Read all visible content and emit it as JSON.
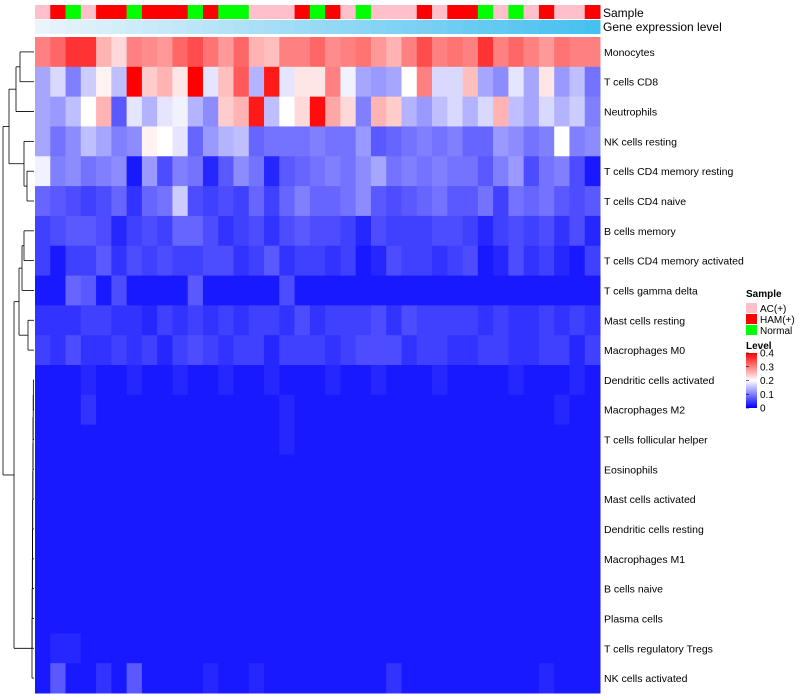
{
  "chart_data": {
    "type": "heatmap",
    "title": "",
    "value_range": [
      0,
      0.4
    ],
    "annotation_rows": [
      {
        "name": "Sample",
        "key": "sample"
      },
      {
        "name": "Gene expression level",
        "key": "gene"
      }
    ],
    "sample_groups": [
      "AC(+)",
      "HAM(+)",
      "Normal",
      "AC(+)",
      "HAM(+)",
      "HAM(+)",
      "Normal",
      "HAM(+)",
      "HAM(+)",
      "HAM(+)",
      "Normal",
      "HAM(+)",
      "Normal",
      "Normal",
      "AC(+)",
      "AC(+)",
      "AC(+)",
      "HAM(+)",
      "Normal",
      "HAM(+)",
      "AC(+)",
      "Normal",
      "AC(+)",
      "AC(+)",
      "AC(+)",
      "HAM(+)",
      "AC(+)",
      "HAM(+)",
      "HAM(+)",
      "Normal",
      "AC(+)",
      "Normal",
      "AC(+)",
      "HAM(+)",
      "AC(+)",
      "AC(+)",
      "HAM(+)"
    ],
    "gene_expression": [
      0.0,
      0.03,
      0.06,
      0.08,
      0.11,
      0.14,
      0.17,
      0.19,
      0.22,
      0.25,
      0.28,
      0.31,
      0.33,
      0.36,
      0.39,
      0.42,
      0.44,
      0.47,
      0.5,
      0.53,
      0.56,
      0.58,
      0.61,
      0.64,
      0.67,
      0.69,
      0.72,
      0.75,
      0.78,
      0.81,
      0.83,
      0.86,
      0.89,
      0.92,
      0.94,
      0.97,
      1.0
    ],
    "rows": [
      "Monocytes",
      "T cells CD8",
      "Neutrophils",
      "NK cells resting",
      "T cells CD4 memory resting",
      "T cells CD4 naive",
      "B cells memory",
      "T cells CD4 memory activated",
      "T cells gamma delta",
      "Mast cells resting",
      "Macrophages M0",
      "Dendritic cells activated",
      "Macrophages M2",
      "T cells follicular helper",
      "Eosinophils",
      "Mast cells activated",
      "Dendritic cells resting",
      "Macrophages M1",
      "B cells naive",
      "Plasma cells",
      "T cells regulatory  Tregs",
      "NK cells activated"
    ],
    "values": [
      [
        0.3,
        0.32,
        0.36,
        0.36,
        0.26,
        0.23,
        0.3,
        0.29,
        0.28,
        0.32,
        0.34,
        0.31,
        0.28,
        0.32,
        0.26,
        0.25,
        0.3,
        0.3,
        0.32,
        0.29,
        0.3,
        0.31,
        0.28,
        0.26,
        0.3,
        0.34,
        0.3,
        0.31,
        0.3,
        0.36,
        0.3,
        0.32,
        0.3,
        0.28,
        0.31,
        0.3,
        0.3
      ],
      [
        0.13,
        0.17,
        0.1,
        0.16,
        0.21,
        0.15,
        0.4,
        0.24,
        0.26,
        0.22,
        0.4,
        0.18,
        0.25,
        0.33,
        0.14,
        0.38,
        0.18,
        0.22,
        0.22,
        0.3,
        0.19,
        0.13,
        0.12,
        0.13,
        0.2,
        0.3,
        0.17,
        0.17,
        0.25,
        0.13,
        0.11,
        0.18,
        0.13,
        0.22,
        0.12,
        0.15,
        0.09
      ],
      [
        0.13,
        0.12,
        0.15,
        0.2,
        0.26,
        0.07,
        0.18,
        0.14,
        0.18,
        0.19,
        0.14,
        0.11,
        0.24,
        0.26,
        0.38,
        0.15,
        0.2,
        0.23,
        0.39,
        0.27,
        0.23,
        0.1,
        0.26,
        0.24,
        0.14,
        0.12,
        0.15,
        0.17,
        0.14,
        0.17,
        0.26,
        0.15,
        0.13,
        0.17,
        0.14,
        0.16,
        0.1
      ],
      [
        0.13,
        0.09,
        0.11,
        0.15,
        0.13,
        0.1,
        0.11,
        0.21,
        0.2,
        0.18,
        0.08,
        0.12,
        0.14,
        0.15,
        0.08,
        0.09,
        0.09,
        0.09,
        0.1,
        0.09,
        0.09,
        0.12,
        0.07,
        0.08,
        0.09,
        0.1,
        0.09,
        0.1,
        0.08,
        0.08,
        0.12,
        0.11,
        0.09,
        0.1,
        0.2,
        0.1,
        0.11
      ],
      [
        0.19,
        0.1,
        0.11,
        0.09,
        0.1,
        0.11,
        0.02,
        0.12,
        0.06,
        0.1,
        0.09,
        0.03,
        0.07,
        0.11,
        0.09,
        0.03,
        0.07,
        0.08,
        0.09,
        0.1,
        0.09,
        0.11,
        0.13,
        0.09,
        0.1,
        0.09,
        0.1,
        0.09,
        0.09,
        0.07,
        0.1,
        0.12,
        0.06,
        0.09,
        0.1,
        0.06,
        0.02
      ],
      [
        0.08,
        0.07,
        0.06,
        0.05,
        0.06,
        0.08,
        0.04,
        0.08,
        0.09,
        0.16,
        0.06,
        0.05,
        0.06,
        0.05,
        0.08,
        0.05,
        0.08,
        0.1,
        0.08,
        0.08,
        0.09,
        0.11,
        0.07,
        0.06,
        0.07,
        0.08,
        0.09,
        0.07,
        0.07,
        0.09,
        0.05,
        0.09,
        0.08,
        0.09,
        0.07,
        0.06,
        0.07
      ],
      [
        0.05,
        0.06,
        0.07,
        0.07,
        0.06,
        0.03,
        0.05,
        0.06,
        0.05,
        0.08,
        0.08,
        0.06,
        0.04,
        0.05,
        0.06,
        0.04,
        0.06,
        0.07,
        0.06,
        0.06,
        0.05,
        0.03,
        0.06,
        0.05,
        0.05,
        0.05,
        0.06,
        0.06,
        0.05,
        0.03,
        0.05,
        0.06,
        0.05,
        0.06,
        0.04,
        0.06,
        0.03
      ],
      [
        0.05,
        0.02,
        0.05,
        0.05,
        0.07,
        0.04,
        0.06,
        0.05,
        0.06,
        0.05,
        0.05,
        0.06,
        0.06,
        0.04,
        0.05,
        0.07,
        0.04,
        0.05,
        0.05,
        0.04,
        0.05,
        0.02,
        0.03,
        0.06,
        0.05,
        0.05,
        0.04,
        0.05,
        0.06,
        0.02,
        0.03,
        0.06,
        0.04,
        0.05,
        0.03,
        0.02,
        0.05
      ],
      [
        0.02,
        0.02,
        0.08,
        0.07,
        0.02,
        0.06,
        0.02,
        0.02,
        0.02,
        0.02,
        0.07,
        0.02,
        0.02,
        0.02,
        0.02,
        0.02,
        0.06,
        0.02,
        0.02,
        0.02,
        0.02,
        0.02,
        0.02,
        0.02,
        0.02,
        0.02,
        0.02,
        0.02,
        0.02,
        0.02,
        0.02,
        0.02,
        0.02,
        0.02,
        0.02,
        0.02,
        0.02
      ],
      [
        0.04,
        0.04,
        0.04,
        0.05,
        0.05,
        0.04,
        0.04,
        0.03,
        0.05,
        0.04,
        0.05,
        0.04,
        0.05,
        0.04,
        0.05,
        0.05,
        0.04,
        0.06,
        0.04,
        0.05,
        0.05,
        0.05,
        0.06,
        0.04,
        0.06,
        0.05,
        0.05,
        0.05,
        0.05,
        0.04,
        0.05,
        0.04,
        0.04,
        0.05,
        0.04,
        0.05,
        0.04
      ],
      [
        0.05,
        0.04,
        0.06,
        0.04,
        0.04,
        0.05,
        0.04,
        0.05,
        0.03,
        0.05,
        0.06,
        0.05,
        0.04,
        0.05,
        0.05,
        0.03,
        0.05,
        0.05,
        0.05,
        0.04,
        0.05,
        0.06,
        0.06,
        0.06,
        0.04,
        0.05,
        0.05,
        0.04,
        0.04,
        0.05,
        0.05,
        0.04,
        0.04,
        0.05,
        0.05,
        0.03,
        0.05
      ],
      [
        0.02,
        0.02,
        0.02,
        0.03,
        0.02,
        0.02,
        0.03,
        0.02,
        0.02,
        0.03,
        0.02,
        0.02,
        0.03,
        0.02,
        0.02,
        0.03,
        0.02,
        0.02,
        0.02,
        0.03,
        0.02,
        0.02,
        0.03,
        0.02,
        0.02,
        0.02,
        0.03,
        0.02,
        0.02,
        0.02,
        0.02,
        0.03,
        0.02,
        0.02,
        0.02,
        0.03,
        0.02
      ],
      [
        0.02,
        0.02,
        0.02,
        0.04,
        0.02,
        0.02,
        0.02,
        0.02,
        0.02,
        0.02,
        0.02,
        0.02,
        0.02,
        0.02,
        0.02,
        0.02,
        0.03,
        0.02,
        0.02,
        0.02,
        0.02,
        0.02,
        0.02,
        0.02,
        0.02,
        0.02,
        0.02,
        0.02,
        0.02,
        0.02,
        0.02,
        0.02,
        0.02,
        0.02,
        0.03,
        0.02,
        0.02
      ],
      [
        0.02,
        0.02,
        0.02,
        0.02,
        0.02,
        0.02,
        0.02,
        0.02,
        0.02,
        0.02,
        0.02,
        0.02,
        0.02,
        0.02,
        0.02,
        0.02,
        0.03,
        0.02,
        0.02,
        0.02,
        0.02,
        0.02,
        0.02,
        0.02,
        0.02,
        0.02,
        0.02,
        0.02,
        0.02,
        0.02,
        0.02,
        0.02,
        0.02,
        0.02,
        0.02,
        0.02,
        0.02
      ],
      [
        0.02,
        0.02,
        0.02,
        0.02,
        0.02,
        0.02,
        0.02,
        0.02,
        0.02,
        0.02,
        0.02,
        0.02,
        0.02,
        0.02,
        0.02,
        0.02,
        0.02,
        0.02,
        0.02,
        0.02,
        0.02,
        0.02,
        0.02,
        0.02,
        0.02,
        0.02,
        0.02,
        0.02,
        0.02,
        0.02,
        0.02,
        0.02,
        0.02,
        0.02,
        0.02,
        0.02,
        0.02
      ],
      [
        0.02,
        0.02,
        0.02,
        0.02,
        0.02,
        0.02,
        0.02,
        0.02,
        0.02,
        0.02,
        0.02,
        0.02,
        0.02,
        0.02,
        0.02,
        0.02,
        0.02,
        0.02,
        0.02,
        0.02,
        0.02,
        0.02,
        0.02,
        0.02,
        0.02,
        0.02,
        0.02,
        0.02,
        0.02,
        0.02,
        0.02,
        0.02,
        0.02,
        0.02,
        0.02,
        0.02,
        0.02
      ],
      [
        0.02,
        0.02,
        0.02,
        0.02,
        0.02,
        0.02,
        0.02,
        0.02,
        0.02,
        0.02,
        0.02,
        0.02,
        0.02,
        0.02,
        0.02,
        0.02,
        0.02,
        0.02,
        0.02,
        0.02,
        0.02,
        0.02,
        0.02,
        0.02,
        0.02,
        0.02,
        0.02,
        0.02,
        0.02,
        0.02,
        0.02,
        0.02,
        0.02,
        0.02,
        0.02,
        0.02,
        0.02
      ],
      [
        0.02,
        0.02,
        0.02,
        0.02,
        0.02,
        0.02,
        0.02,
        0.02,
        0.02,
        0.02,
        0.02,
        0.02,
        0.02,
        0.02,
        0.02,
        0.02,
        0.02,
        0.02,
        0.02,
        0.02,
        0.02,
        0.02,
        0.02,
        0.02,
        0.02,
        0.02,
        0.02,
        0.02,
        0.02,
        0.02,
        0.02,
        0.02,
        0.02,
        0.02,
        0.02,
        0.02,
        0.02
      ],
      [
        0.02,
        0.02,
        0.02,
        0.02,
        0.02,
        0.02,
        0.02,
        0.02,
        0.02,
        0.02,
        0.02,
        0.02,
        0.02,
        0.02,
        0.02,
        0.02,
        0.02,
        0.02,
        0.02,
        0.02,
        0.02,
        0.02,
        0.02,
        0.02,
        0.02,
        0.02,
        0.02,
        0.02,
        0.02,
        0.02,
        0.02,
        0.02,
        0.02,
        0.02,
        0.02,
        0.02,
        0.02
      ],
      [
        0.02,
        0.02,
        0.02,
        0.02,
        0.02,
        0.02,
        0.02,
        0.02,
        0.02,
        0.02,
        0.02,
        0.02,
        0.02,
        0.02,
        0.02,
        0.02,
        0.02,
        0.02,
        0.02,
        0.02,
        0.02,
        0.02,
        0.02,
        0.02,
        0.02,
        0.02,
        0.02,
        0.02,
        0.02,
        0.02,
        0.02,
        0.02,
        0.02,
        0.02,
        0.02,
        0.02,
        0.02
      ],
      [
        0.02,
        0.03,
        0.03,
        0.02,
        0.02,
        0.02,
        0.02,
        0.02,
        0.02,
        0.02,
        0.02,
        0.02,
        0.02,
        0.02,
        0.02,
        0.02,
        0.02,
        0.02,
        0.02,
        0.02,
        0.02,
        0.02,
        0.02,
        0.02,
        0.02,
        0.02,
        0.02,
        0.02,
        0.02,
        0.02,
        0.02,
        0.02,
        0.02,
        0.02,
        0.02,
        0.02,
        0.02
      ],
      [
        0.02,
        0.07,
        0.02,
        0.02,
        0.04,
        0.02,
        0.07,
        0.02,
        0.02,
        0.02,
        0.02,
        0.03,
        0.02,
        0.02,
        0.03,
        0.02,
        0.02,
        0.02,
        0.02,
        0.02,
        0.02,
        0.02,
        0.02,
        0.04,
        0.02,
        0.02,
        0.02,
        0.02,
        0.02,
        0.02,
        0.02,
        0.02,
        0.02,
        0.03,
        0.02,
        0.02,
        0.02
      ]
    ],
    "legend": {
      "sample_title": "Sample",
      "sample_entries": [
        {
          "label": "AC(+)",
          "color": "#ffc0cb"
        },
        {
          "label": "HAM(+)",
          "color": "#ff0000"
        },
        {
          "label": "Normal",
          "color": "#00ff00"
        }
      ],
      "level_title": "Level",
      "level_ticks": [
        {
          "value": 0.4,
          "label": "0.4"
        },
        {
          "value": 0.3,
          "label": "0.3"
        },
        {
          "value": 0.2,
          "label": "0.2"
        },
        {
          "value": 0.1,
          "label": "0.1"
        },
        {
          "value": 0,
          "label": "0"
        }
      ]
    },
    "colors": {
      "low": "#0000ff",
      "mid": "#ffffff",
      "high": "#ff0000",
      "gene_low": "#eaf4fb",
      "gene_high": "#46c0f0"
    }
  }
}
